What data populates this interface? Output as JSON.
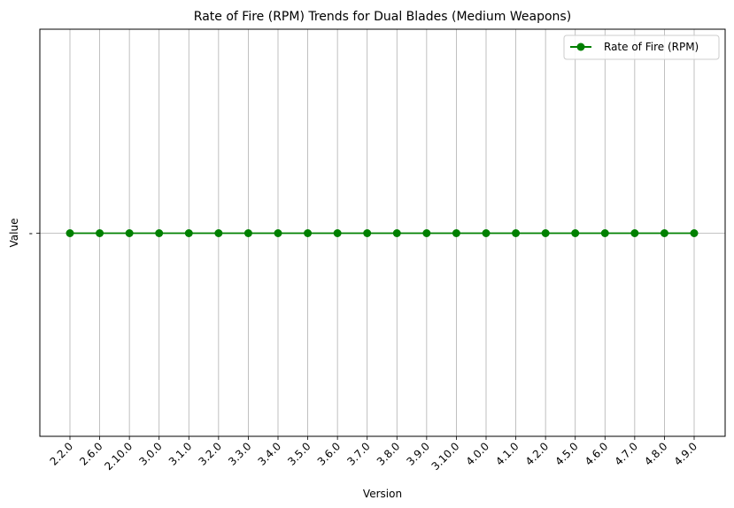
{
  "chart_data": {
    "type": "line",
    "title": "Rate of Fire (RPM) Trends for Dual Blades (Medium Weapons)",
    "xlabel": "Version",
    "ylabel": "Value",
    "categories": [
      "2.2.0",
      "2.6.0",
      "2.10.0",
      "3.0.0",
      "3.1.0",
      "3.2.0",
      "3.3.0",
      "3.4.0",
      "3.5.0",
      "3.6.0",
      "3.7.0",
      "3.8.0",
      "3.9.0",
      "3.10.0",
      "4.0.0",
      "4.1.0",
      "4.2.0",
      "4.5.0",
      "4.6.0",
      "4.7.0",
      "4.8.0",
      "4.9.0"
    ],
    "y_categories": [
      "-"
    ],
    "series": [
      {
        "name": "Rate of Fire (RPM)",
        "values": [
          "-",
          "-",
          "-",
          "-",
          "-",
          "-",
          "-",
          "-",
          "-",
          "-",
          "-",
          "-",
          "-",
          "-",
          "-",
          "-",
          "-",
          "-",
          "-",
          "-",
          "-",
          "-"
        ],
        "color": "#008000",
        "marker": "circle"
      }
    ],
    "grid": true,
    "legend": "top-right"
  }
}
